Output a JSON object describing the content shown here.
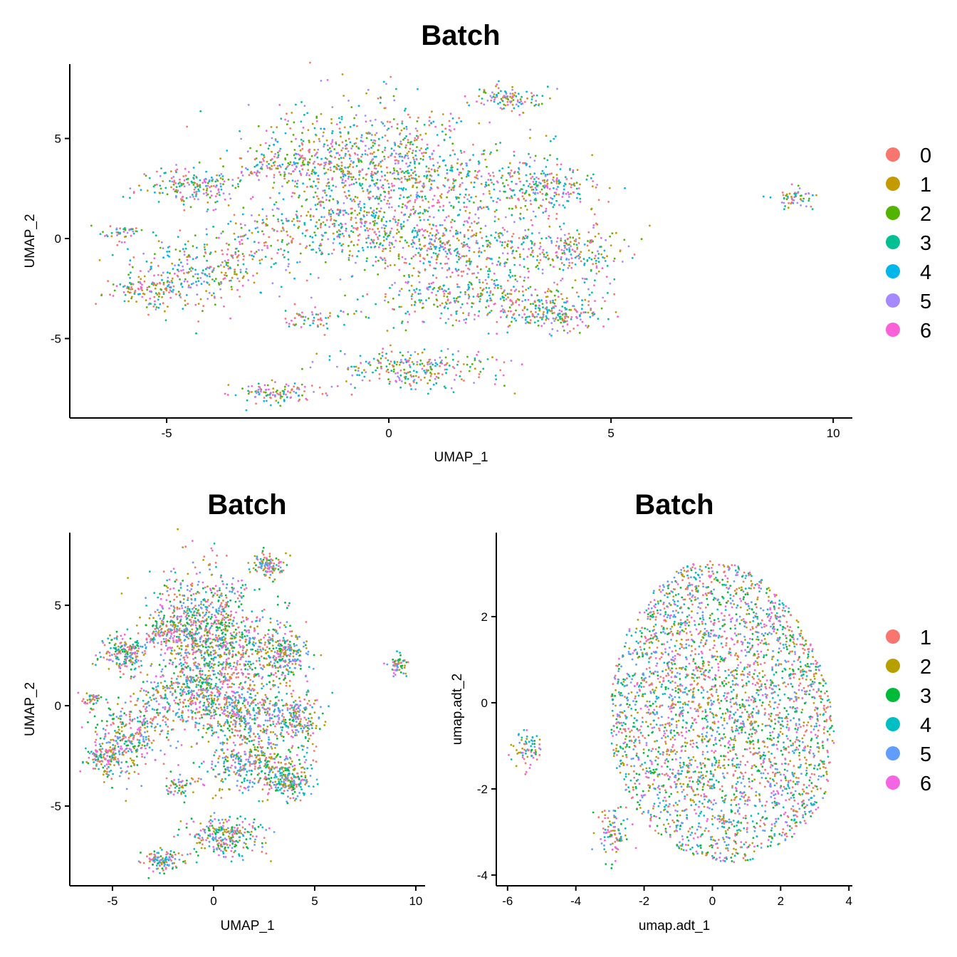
{
  "chart_data": [
    {
      "type": "scatter",
      "title": "Batch",
      "xlabel": "UMAP_1",
      "ylabel": "UMAP_2",
      "xlim": [
        -7.18,
        10.43
      ],
      "ylim": [
        -8.97,
        8.72
      ],
      "xticks": [
        "-5",
        "0",
        "5",
        "10"
      ],
      "xtick_values": [
        -5,
        0,
        5,
        10
      ],
      "yticks": [
        "5",
        "0",
        "-5"
      ],
      "ytick_values": [
        5,
        0,
        -5
      ],
      "legend_position": "right",
      "legend": [
        "0",
        "1",
        "2",
        "3",
        "4",
        "5",
        "6"
      ],
      "colors": [
        "#F8766D",
        "#C49A00",
        "#53B400",
        "#00C094",
        "#00B6EB",
        "#A58AFF",
        "#FB61D7"
      ],
      "clusters_note": "points drawn from clusters [cx, cy, sdx, sdy, n]",
      "clusters": [
        [
          -0.5,
          4.6,
          1.3,
          1.2,
          500
        ],
        [
          2.7,
          7.0,
          0.35,
          0.3,
          110
        ],
        [
          -4.5,
          2.6,
          0.6,
          0.45,
          170
        ],
        [
          -2,
          3.6,
          1,
          0.5,
          200
        ],
        [
          1,
          2.6,
          1.5,
          1,
          500
        ],
        [
          3.5,
          2.5,
          0.6,
          0.6,
          170
        ],
        [
          1.5,
          -0.5,
          1.5,
          0.9,
          500
        ],
        [
          4.2,
          -0.7,
          0.5,
          0.6,
          160
        ],
        [
          -4.5,
          -2,
          0.8,
          0.8,
          260
        ],
        [
          -5.5,
          -2.6,
          0.35,
          0.3,
          80
        ],
        [
          -6,
          0.3,
          0.3,
          0.2,
          45
        ],
        [
          3.8,
          -3.8,
          0.5,
          0.5,
          170
        ],
        [
          2,
          -3,
          1.2,
          0.6,
          330
        ],
        [
          0.5,
          -6.5,
          1,
          0.5,
          260
        ],
        [
          -2.5,
          -7.7,
          0.4,
          0.3,
          110
        ],
        [
          -1.5,
          -4,
          0.4,
          0.3,
          60
        ],
        [
          9.1,
          2,
          0.25,
          0.3,
          60
        ],
        [
          -1,
          1,
          1.2,
          0.8,
          330
        ],
        [
          -3,
          -0.5,
          0.9,
          0.7,
          150
        ]
      ]
    },
    {
      "type": "scatter",
      "title": "Batch",
      "xlabel": "UMAP_1",
      "ylabel": "UMAP_2",
      "xlim": [
        -7.11,
        10.46
      ],
      "ylim": [
        -8.97,
        8.62
      ],
      "xticks": [
        "-5",
        "0",
        "5",
        "10"
      ],
      "xtick_values": [
        -5,
        0,
        5,
        10
      ],
      "yticks": [
        "5",
        "0",
        "-5"
      ],
      "ytick_values": [
        5,
        0,
        -5
      ],
      "legend": [],
      "colors": [
        "#F8766D",
        "#B79F00",
        "#00BA38",
        "#00BFC4",
        "#619CFF",
        "#F564E3"
      ],
      "clusters_source": 0
    },
    {
      "type": "scatter",
      "title": "Batch",
      "xlabel": "umap.adt_1",
      "ylabel": "umap.adt_2",
      "xlim": [
        -6.33,
        4.1
      ],
      "ylim": [
        -4.25,
        3.95
      ],
      "xticks": [
        "-6",
        "-4",
        "-2",
        "0",
        "2",
        "4"
      ],
      "xtick_values": [
        -6,
        -4,
        -2,
        0,
        2,
        4
      ],
      "yticks": [
        "2",
        "0",
        "-2",
        "-4"
      ],
      "ytick_values": [
        2,
        0,
        -2,
        -4
      ],
      "legend_position": "right",
      "legend": [
        "1",
        "2",
        "3",
        "4",
        "5",
        "6"
      ],
      "colors": [
        "#F8766D",
        "#B79F00",
        "#00BA38",
        "#00BFC4",
        "#619CFF",
        "#F564E3"
      ],
      "main_body": {
        "cx": 0.25,
        "cy": -0.2,
        "rx": 3.25,
        "ry": 3.5,
        "n": 3200
      },
      "clusters": [
        [
          -5.4,
          -1.1,
          0.2,
          0.2,
          70
        ],
        [
          -2.9,
          -3,
          0.25,
          0.3,
          90
        ]
      ]
    }
  ]
}
